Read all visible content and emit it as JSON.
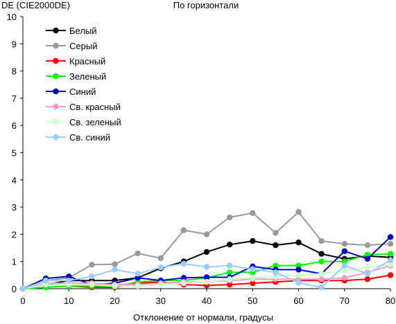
{
  "chart_data": {
    "type": "line",
    "title": "По горизонтали",
    "ylabel": "DE (CIE2000DE)",
    "xlabel": "Отклонение от нормали, градусы",
    "x": [
      0,
      5,
      10,
      15,
      20,
      25,
      30,
      35,
      40,
      45,
      50,
      55,
      60,
      65,
      70,
      75,
      80
    ],
    "xlim": [
      0,
      80
    ],
    "ylim": [
      0,
      10
    ],
    "xticks": [
      0,
      10,
      20,
      30,
      40,
      50,
      60,
      70,
      80
    ],
    "yticks": [
      0,
      1,
      2,
      3,
      4,
      5,
      6,
      7,
      8,
      9,
      10
    ],
    "grid": false,
    "legend_position": "top-left",
    "series": [
      {
        "name": "Белый",
        "color": "#000000",
        "values": [
          0,
          0.15,
          0.3,
          0.3,
          0.3,
          0.4,
          0.75,
          1.0,
          1.35,
          1.62,
          1.75,
          1.6,
          1.7,
          1.28,
          1.1,
          1.2,
          1.15
        ]
      },
      {
        "name": "Серый",
        "color": "#999999",
        "values": [
          0,
          0.3,
          0.4,
          0.88,
          0.9,
          1.3,
          1.12,
          2.15,
          2.0,
          2.62,
          2.78,
          2.05,
          2.82,
          1.75,
          1.65,
          1.6,
          1.65
        ]
      },
      {
        "name": "Красный",
        "color": "#ff0000",
        "values": [
          0,
          0.05,
          0.1,
          0.05,
          0.05,
          0.2,
          0.25,
          0.15,
          0.12,
          0.15,
          0.2,
          0.25,
          0.3,
          0.3,
          0.3,
          0.35,
          0.5
        ]
      },
      {
        "name": "Зеленый",
        "color": "#00ff00",
        "values": [
          0,
          0.05,
          0.1,
          0.1,
          0.08,
          0.25,
          0.3,
          0.3,
          0.4,
          0.6,
          0.6,
          0.85,
          0.85,
          1.0,
          1.0,
          1.25,
          1.28
        ]
      },
      {
        "name": "Синий",
        "color": "#0000cc",
        "values": [
          0,
          0.38,
          0.45,
          0.15,
          0.2,
          0.4,
          0.3,
          0.4,
          0.42,
          0.42,
          0.82,
          0.7,
          0.7,
          0.55,
          1.38,
          1.1,
          1.9
        ]
      },
      {
        "name": "Св. красный",
        "color": "#ff99cc",
        "values": [
          0,
          0.2,
          0.2,
          0.2,
          0.15,
          0.15,
          0.2,
          0.25,
          0.25,
          0.3,
          0.35,
          0.35,
          0.35,
          0.35,
          0.4,
          0.6,
          0.85
        ]
      },
      {
        "name": "Св. зеленый",
        "color": "#ccffcc",
        "values": [
          0,
          0.15,
          0.15,
          0.15,
          0.1,
          0.1,
          0.15,
          0.2,
          0.25,
          0.35,
          0.4,
          0.45,
          0.5,
          0.55,
          0.65,
          0.8,
          0.9
        ]
      },
      {
        "name": "Св. синий",
        "color": "#99ccff",
        "values": [
          0,
          0.3,
          0.3,
          0.45,
          0.7,
          0.55,
          0.78,
          0.92,
          0.8,
          0.85,
          0.72,
          0.6,
          0.22,
          0.05,
          0.85,
          0.55,
          1.05
        ]
      }
    ]
  }
}
